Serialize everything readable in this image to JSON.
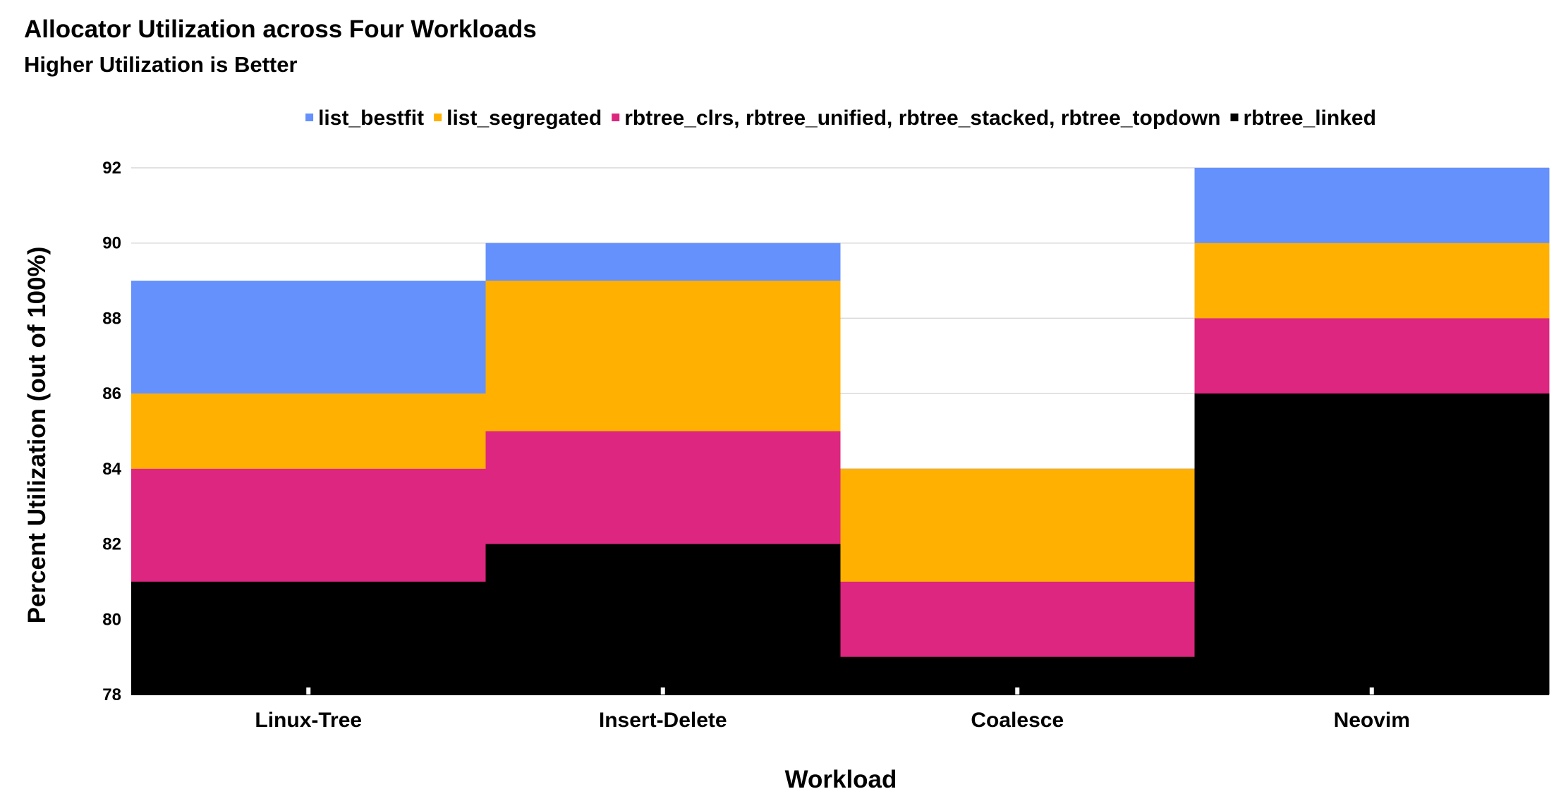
{
  "chart_data": {
    "type": "bar",
    "title": "Allocator Utilization across Four Workloads",
    "subtitle": "Higher Utilization is Better",
    "xlabel": "Workload",
    "ylabel": "Percent Utilization (out of 100%)",
    "ylim": [
      78,
      92
    ],
    "yticks": [
      78,
      80,
      82,
      84,
      86,
      88,
      90,
      92
    ],
    "grid": true,
    "legend_position": "top-center",
    "overlap": true,
    "categories": [
      "Linux-Tree",
      "Insert-Delete",
      "Coalesce",
      "Neovim"
    ],
    "series": [
      {
        "name": "list_bestfit",
        "color": "#6591fd",
        "values": [
          89,
          90,
          null,
          92
        ]
      },
      {
        "name": "list_segregated",
        "color": "#ffb000",
        "values": [
          86,
          89,
          84,
          90
        ]
      },
      {
        "name": "rbtree_clrs, rbtree_unified, rbtree_stacked, rbtree_topdown",
        "color": "#dc267f",
        "values": [
          84,
          85,
          81,
          88
        ]
      },
      {
        "name": "rbtree_linked",
        "color": "#000000",
        "values": [
          81,
          82,
          79,
          86
        ]
      }
    ]
  }
}
